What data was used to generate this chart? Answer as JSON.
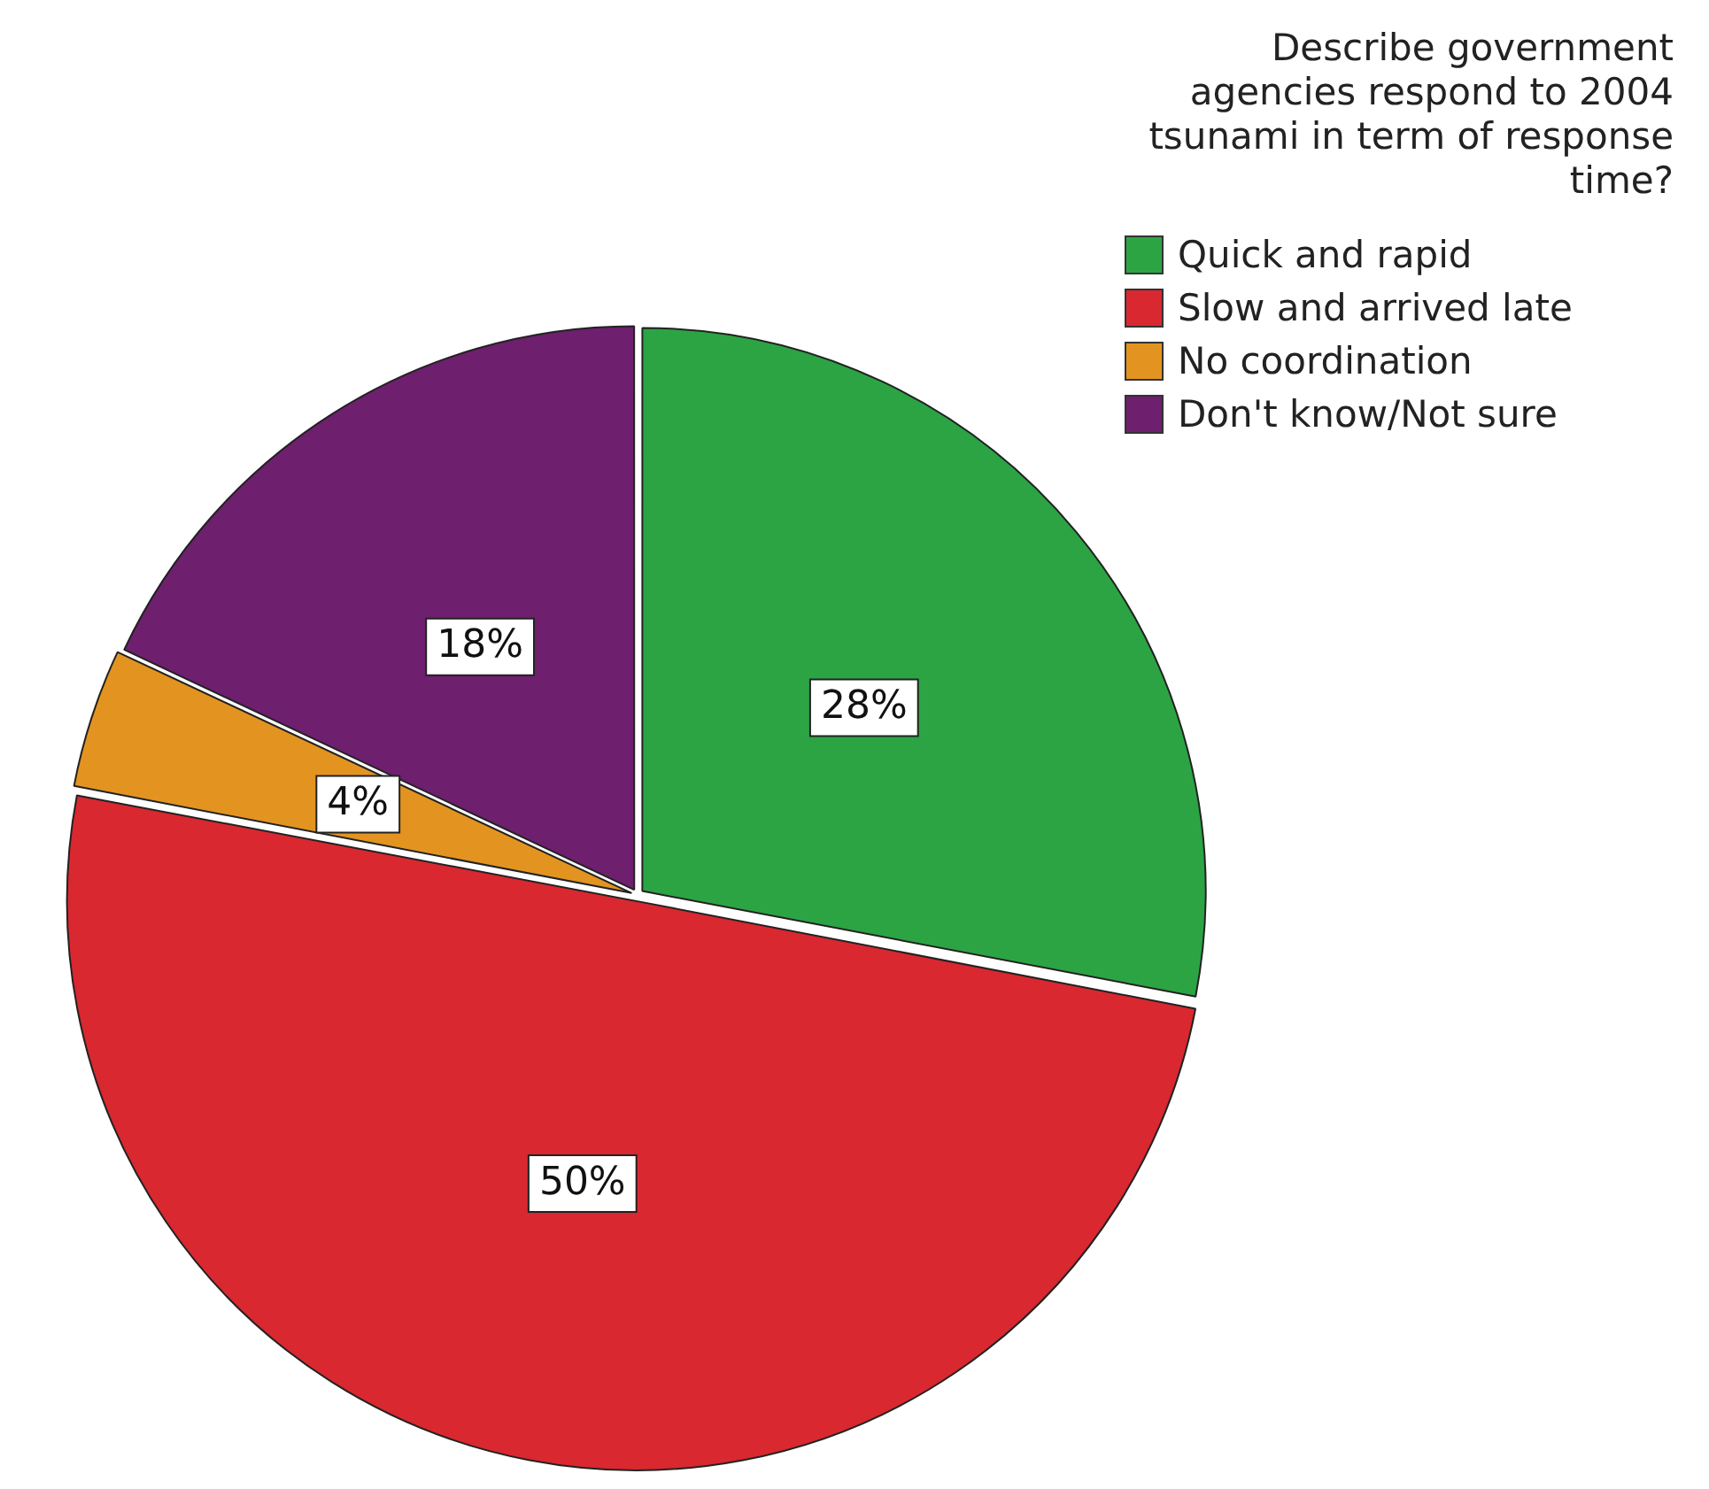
{
  "chart_data": {
    "type": "pie",
    "legend_title": "Describe government agencies respond to 2004 tsunami in term of response time?",
    "categories": [
      "Quick and rapid",
      "Slow and arrived late",
      "No coordination",
      "Don't know/Not sure"
    ],
    "values": [
      28,
      50,
      4,
      18
    ],
    "colors": [
      "#2ca444",
      "#d9282f",
      "#e39420",
      "#6e1f6e"
    ],
    "value_labels": [
      "28%",
      "50%",
      "4%",
      "18%"
    ],
    "legend": "top right"
  }
}
